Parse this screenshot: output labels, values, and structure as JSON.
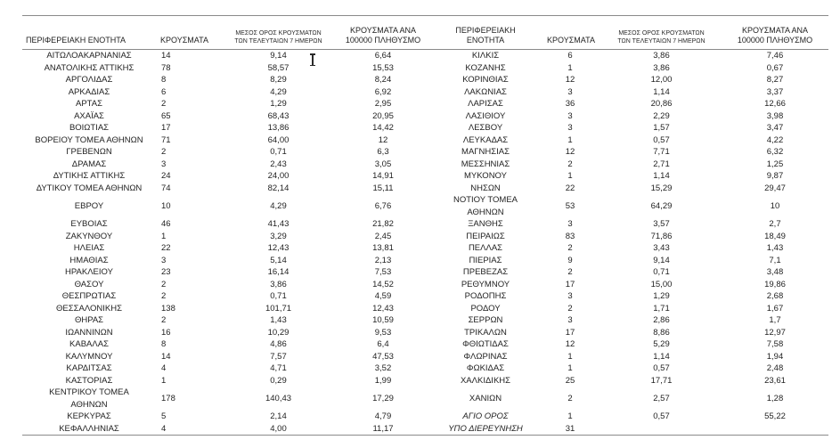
{
  "colors": {
    "background": "#ffffff",
    "text": "#1f1f1f",
    "rule_lines": "#8a8a8a"
  },
  "cursor": {
    "type": "text-ibeam-cursor"
  },
  "table": {
    "headers": {
      "region": "ΠΕΡΙΦΕΡΕΙΑΚΗ ΕΝΟΤΗΤΑ",
      "region_line1": "ΠΕΡΙΦΕΡΕΙΑΚΗ",
      "region_line2": "ΕΝΟΤΗΤΑ",
      "cases": "ΚΡΟΥΣΜΑΤΑ",
      "avg7_line1": "ΜΕΣΟΣ ΟΡΟΣ ΚΡΟΥΣΜΑΤΩΝ",
      "avg7_line2": "ΤΩΝ ΤΕΛΕΥΤΑΙΩΝ 7 ΗΜΕΡΩΝ",
      "per100k_line1": "ΚΡΟΥΣΜΑΤΑ ΑΝΑ",
      "per100k_line2": "100000 ΠΛΗΘΥΣΜΟ"
    },
    "left_rows": [
      {
        "region": "ΑΙΤΩΛΟΑΚΑΡΝΑΝΙΑΣ",
        "cases": "14",
        "avg7": "9,14",
        "per100k": "6,64"
      },
      {
        "region": "ΑΝΑΤΟΛΙΚΗΣ ΑΤΤΙΚΗΣ",
        "cases": "78",
        "avg7": "58,57",
        "per100k": "15,53"
      },
      {
        "region": "ΑΡΓΟΛΙΔΑΣ",
        "cases": "8",
        "avg7": "8,29",
        "per100k": "8,24"
      },
      {
        "region": "ΑΡΚΑΔΙΑΣ",
        "cases": "6",
        "avg7": "4,29",
        "per100k": "6,92"
      },
      {
        "region": "ΑΡΤΑΣ",
        "cases": "2",
        "avg7": "1,29",
        "per100k": "2,95"
      },
      {
        "region": "ΑΧΑΪΑΣ",
        "cases": "65",
        "avg7": "68,43",
        "per100k": "20,95"
      },
      {
        "region": "ΒΟΙΩΤΙΑΣ",
        "cases": "17",
        "avg7": "13,86",
        "per100k": "14,42"
      },
      {
        "region": "ΒΟΡΕΙΟΥ ΤΟΜΕΑ ΑΘΗΝΩΝ",
        "cases": "71",
        "avg7": "64,00",
        "per100k": "12"
      },
      {
        "region": "ΓΡΕΒΕΝΩΝ",
        "cases": "2",
        "avg7": "0,71",
        "per100k": "6,3"
      },
      {
        "region": "ΔΡΑΜΑΣ",
        "cases": "3",
        "avg7": "2,43",
        "per100k": "3,05"
      },
      {
        "region": "ΔΥΤΙΚΗΣ ΑΤΤΙΚΗΣ",
        "cases": "24",
        "avg7": "24,00",
        "per100k": "14,91"
      },
      {
        "region": "ΔΥΤΙΚΟΥ ΤΟΜΕΑ ΑΘΗΝΩΝ",
        "cases": "74",
        "avg7": "82,14",
        "per100k": "15,11"
      },
      {
        "region": "ΕΒΡΟΥ",
        "cases": "10",
        "avg7": "4,29",
        "per100k": "6,76"
      },
      {
        "region": "ΕΥΒΟΙΑΣ",
        "cases": "46",
        "avg7": "41,43",
        "per100k": "21,82"
      },
      {
        "region": "ΖΑΚΥΝΘΟΥ",
        "cases": "1",
        "avg7": "3,29",
        "per100k": "2,45"
      },
      {
        "region": "ΗΛΕΙΑΣ",
        "cases": "22",
        "avg7": "12,43",
        "per100k": "13,81"
      },
      {
        "region": "ΗΜΑΘΙΑΣ",
        "cases": "3",
        "avg7": "5,14",
        "per100k": "2,13"
      },
      {
        "region": "ΗΡΑΚΛΕΙΟΥ",
        "cases": "23",
        "avg7": "16,14",
        "per100k": "7,53"
      },
      {
        "region": "ΘΑΣΟΥ",
        "cases": "2",
        "avg7": "3,86",
        "per100k": "14,52"
      },
      {
        "region": "ΘΕΣΠΡΩΤΙΑΣ",
        "cases": "2",
        "avg7": "0,71",
        "per100k": "4,59"
      },
      {
        "region": "ΘΕΣΣΑΛΟΝΙΚΗΣ",
        "cases": "138",
        "avg7": "101,71",
        "per100k": "12,43"
      },
      {
        "region": "ΘΗΡΑΣ",
        "cases": "2",
        "avg7": "1,43",
        "per100k": "10,59"
      },
      {
        "region": "ΙΩΑΝΝΙΝΩΝ",
        "cases": "16",
        "avg7": "10,29",
        "per100k": "9,53"
      },
      {
        "region": "ΚΑΒΑΛΑΣ",
        "cases": "8",
        "avg7": "4,86",
        "per100k": "6,4"
      },
      {
        "region": "ΚΑΛΥΜΝΟΥ",
        "cases": "14",
        "avg7": "7,57",
        "per100k": "47,53"
      },
      {
        "region": "ΚΑΡΔΙΤΣΑΣ",
        "cases": "4",
        "avg7": "4,71",
        "per100k": "3,52"
      },
      {
        "region": "ΚΑΣΤΟΡΙΑΣ",
        "cases": "1",
        "avg7": "0,29",
        "per100k": "1,99"
      },
      {
        "region": "ΚΕΝΤΡΙΚΟΥ ΤΟΜΕΑ ΑΘΗΝΩΝ",
        "cases": "178",
        "avg7": "140,43",
        "per100k": "17,29"
      },
      {
        "region": "ΚΕΡΚΥΡΑΣ",
        "cases": "5",
        "avg7": "2,14",
        "per100k": "4,79"
      },
      {
        "region": "ΚΕΦΑΛΛΗΝΙΑΣ",
        "cases": "4",
        "avg7": "4,00",
        "per100k": "11,17"
      }
    ],
    "right_rows": [
      {
        "region": "ΚΙΛΚΙΣ",
        "cases": "6",
        "avg7": "3,86",
        "per100k": "7,46"
      },
      {
        "region": "ΚΟΖΑΝΗΣ",
        "cases": "1",
        "avg7": "3,86",
        "per100k": "0,67"
      },
      {
        "region": "ΚΟΡΙΝΘΙΑΣ",
        "cases": "12",
        "avg7": "12,00",
        "per100k": "8,27"
      },
      {
        "region": "ΛΑΚΩΝΙΑΣ",
        "cases": "3",
        "avg7": "1,14",
        "per100k": "3,37"
      },
      {
        "region": "ΛΑΡΙΣΑΣ",
        "cases": "36",
        "avg7": "20,86",
        "per100k": "12,66"
      },
      {
        "region": "ΛΑΣΙΘΙΟΥ",
        "cases": "3",
        "avg7": "2,29",
        "per100k": "3,98"
      },
      {
        "region": "ΛΕΣΒΟΥ",
        "cases": "3",
        "avg7": "1,57",
        "per100k": "3,47"
      },
      {
        "region": "ΛΕΥΚΑΔΑΣ",
        "cases": "1",
        "avg7": "0,57",
        "per100k": "4,22"
      },
      {
        "region": "ΜΑΓΝΗΣΙΑΣ",
        "cases": "12",
        "avg7": "7,71",
        "per100k": "6,32"
      },
      {
        "region": "ΜΕΣΣΗΝΙΑΣ",
        "cases": "2",
        "avg7": "2,71",
        "per100k": "1,25"
      },
      {
        "region": "ΜΥΚΟΝΟΥ",
        "cases": "1",
        "avg7": "1,14",
        "per100k": "9,87"
      },
      {
        "region": "ΝΗΣΩΝ",
        "cases": "22",
        "avg7": "15,29",
        "per100k": "29,47"
      },
      {
        "region": "ΝΟΤΙΟΥ ΤΟΜΕΑ ΑΘΗΝΩΝ",
        "cases": "53",
        "avg7": "64,29",
        "per100k": "10"
      },
      {
        "region": "ΞΑΝΘΗΣ",
        "cases": "3",
        "avg7": "3,57",
        "per100k": "2,7"
      },
      {
        "region": "ΠΕΙΡΑΙΩΣ",
        "cases": "83",
        "avg7": "71,86",
        "per100k": "18,49"
      },
      {
        "region": "ΠΕΛΛΑΣ",
        "cases": "2",
        "avg7": "3,43",
        "per100k": "1,43"
      },
      {
        "region": "ΠΙΕΡΙΑΣ",
        "cases": "9",
        "avg7": "9,14",
        "per100k": "7,1"
      },
      {
        "region": "ΠΡΕΒΕΖΑΣ",
        "cases": "2",
        "avg7": "0,71",
        "per100k": "3,48"
      },
      {
        "region": "ΡΕΘΥΜΝΟΥ",
        "cases": "17",
        "avg7": "15,00",
        "per100k": "19,86"
      },
      {
        "region": "ΡΟΔΟΠΗΣ",
        "cases": "3",
        "avg7": "1,29",
        "per100k": "2,68"
      },
      {
        "region": "ΡΟΔΟΥ",
        "cases": "2",
        "avg7": "1,71",
        "per100k": "1,67"
      },
      {
        "region": "ΣΕΡΡΩΝ",
        "cases": "3",
        "avg7": "2,86",
        "per100k": "1,7"
      },
      {
        "region": "ΤΡΙΚΑΛΩΝ",
        "cases": "17",
        "avg7": "8,86",
        "per100k": "12,97"
      },
      {
        "region": "ΦΘΙΩΤΙΔΑΣ",
        "cases": "12",
        "avg7": "5,29",
        "per100k": "7,58"
      },
      {
        "region": "ΦΛΩΡΙΝΑΣ",
        "cases": "1",
        "avg7": "1,14",
        "per100k": "1,94"
      },
      {
        "region": "ΦΩΚΙΔΑΣ",
        "cases": "1",
        "avg7": "0,57",
        "per100k": "2,48"
      },
      {
        "region": "ΧΑΛΚΙΔΙΚΗΣ",
        "cases": "25",
        "avg7": "17,71",
        "per100k": "23,61"
      },
      {
        "region": "ΧΑΝΙΩΝ",
        "cases": "2",
        "avg7": "2,57",
        "per100k": "1,28"
      },
      {
        "region": "ΑΓΙΟ ΟΡΟΣ",
        "cases": "1",
        "avg7": "0,57",
        "per100k": "55,22",
        "italic": true
      },
      {
        "region": "ΥΠΟ ΔΙΕΡΕΥΝΗΣΗ",
        "cases": "31",
        "avg7": "",
        "per100k": "",
        "italic": true
      }
    ]
  }
}
